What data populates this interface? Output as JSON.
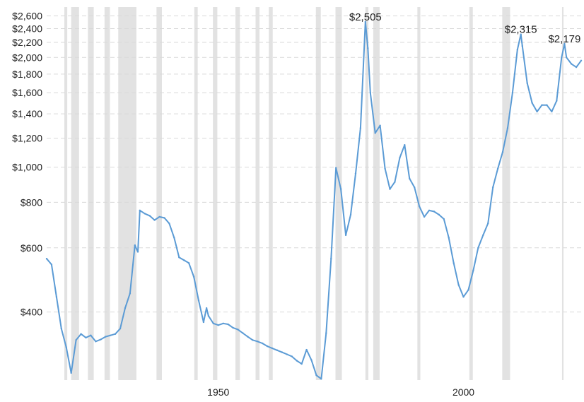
{
  "chart_data": {
    "type": "line",
    "title": "",
    "xlabel": "",
    "ylabel": "",
    "y_scale": "log",
    "ylim": [
      260,
      2750
    ],
    "xlim": [
      1915,
      2024
    ],
    "grid": true,
    "colors": {
      "line": "#5b9bd5",
      "recession": "#e2e2e2",
      "grid": "#d9d9d9"
    },
    "y_ticks": [
      {
        "value": 2600,
        "label": "$2,600"
      },
      {
        "value": 2400,
        "label": "$2,400"
      },
      {
        "value": 2200,
        "label": "$2,200"
      },
      {
        "value": 2000,
        "label": "$2,000"
      },
      {
        "value": 1800,
        "label": "$1,800"
      },
      {
        "value": 1600,
        "label": "$1,600"
      },
      {
        "value": 1400,
        "label": "$1,400"
      },
      {
        "value": 1200,
        "label": "$1,200"
      },
      {
        "value": 1000,
        "label": "$1,000"
      },
      {
        "value": 800,
        "label": "$800"
      },
      {
        "value": 600,
        "label": "$600"
      },
      {
        "value": 400,
        "label": "$400"
      }
    ],
    "x_ticks": [
      {
        "value": 1950,
        "label": "1950"
      },
      {
        "value": 2000,
        "label": "2000"
      }
    ],
    "recessions": [
      [
        1918.6,
        1919.2
      ],
      [
        1920.0,
        1921.6
      ],
      [
        1923.4,
        1924.6
      ],
      [
        1926.8,
        1927.9
      ],
      [
        1929.6,
        1933.3
      ],
      [
        1937.4,
        1938.5
      ],
      [
        1945.1,
        1945.8
      ],
      [
        1948.9,
        1949.8
      ],
      [
        1953.5,
        1954.4
      ],
      [
        1957.6,
        1958.4
      ],
      [
        1960.3,
        1961.1
      ],
      [
        1969.9,
        1970.9
      ],
      [
        1973.9,
        1975.2
      ],
      [
        1980.0,
        1980.6
      ],
      [
        1981.6,
        1982.9
      ],
      [
        1990.6,
        1991.2
      ],
      [
        2001.2,
        2001.9
      ],
      [
        2007.9,
        2009.5
      ],
      [
        2020.1,
        2020.4
      ]
    ],
    "annotations": [
      {
        "x": 1980.0,
        "y": 2505,
        "label": "$2,505"
      },
      {
        "x": 2011.7,
        "y": 2315,
        "label": "$2,315"
      },
      {
        "x": 2020.6,
        "y": 2179,
        "label": "$2,179"
      }
    ],
    "series": [
      {
        "points": [
          [
            1915,
            560
          ],
          [
            1916,
            540
          ],
          [
            1917,
            440
          ],
          [
            1918,
            360
          ],
          [
            1919,
            320
          ],
          [
            1920,
            272
          ],
          [
            1921,
            335
          ],
          [
            1922,
            348
          ],
          [
            1923,
            340
          ],
          [
            1924,
            345
          ],
          [
            1925,
            332
          ],
          [
            1926,
            336
          ],
          [
            1927,
            342
          ],
          [
            1928,
            345
          ],
          [
            1929,
            348
          ],
          [
            1930,
            360
          ],
          [
            1931,
            410
          ],
          [
            1932,
            450
          ],
          [
            1933,
            610
          ],
          [
            1933.6,
            585
          ],
          [
            1934,
            760
          ],
          [
            1935,
            745
          ],
          [
            1936,
            735
          ],
          [
            1937,
            715
          ],
          [
            1938,
            730
          ],
          [
            1939,
            725
          ],
          [
            1940,
            700
          ],
          [
            1941,
            640
          ],
          [
            1942,
            565
          ],
          [
            1943,
            555
          ],
          [
            1944,
            545
          ],
          [
            1945,
            500
          ],
          [
            1946,
            430
          ],
          [
            1947,
            375
          ],
          [
            1947.6,
            410
          ],
          [
            1948,
            390
          ],
          [
            1949,
            372
          ],
          [
            1950,
            368
          ],
          [
            1951,
            372
          ],
          [
            1952,
            370
          ],
          [
            1953,
            362
          ],
          [
            1954,
            358
          ],
          [
            1955,
            350
          ],
          [
            1956,
            342
          ],
          [
            1957,
            335
          ],
          [
            1958,
            332
          ],
          [
            1959,
            328
          ],
          [
            1960,
            322
          ],
          [
            1961,
            318
          ],
          [
            1962,
            314
          ],
          [
            1963,
            310
          ],
          [
            1964,
            306
          ],
          [
            1965,
            302
          ],
          [
            1966,
            294
          ],
          [
            1967,
            288
          ],
          [
            1968,
            315
          ],
          [
            1969,
            295
          ],
          [
            1970,
            268
          ],
          [
            1971,
            262
          ],
          [
            1972,
            350
          ],
          [
            1973,
            560
          ],
          [
            1974,
            995
          ],
          [
            1975,
            870
          ],
          [
            1976,
            650
          ],
          [
            1977,
            740
          ],
          [
            1978,
            960
          ],
          [
            1979,
            1280
          ],
          [
            1980,
            2505
          ],
          [
            1980.5,
            2120
          ],
          [
            1981,
            1600
          ],
          [
            1982,
            1240
          ],
          [
            1983,
            1300
          ],
          [
            1984,
            990
          ],
          [
            1985,
            870
          ],
          [
            1986,
            910
          ],
          [
            1987,
            1060
          ],
          [
            1988,
            1150
          ],
          [
            1989,
            930
          ],
          [
            1990,
            880
          ],
          [
            1991,
            780
          ],
          [
            1992,
            730
          ],
          [
            1993,
            760
          ],
          [
            1994,
            755
          ],
          [
            1995,
            740
          ],
          [
            1996,
            720
          ],
          [
            1997,
            640
          ],
          [
            1998,
            545
          ],
          [
            1999,
            475
          ],
          [
            2000,
            440
          ],
          [
            2001,
            460
          ],
          [
            2002,
            520
          ],
          [
            2003,
            600
          ],
          [
            2004,
            650
          ],
          [
            2005,
            700
          ],
          [
            2006,
            880
          ],
          [
            2007,
            990
          ],
          [
            2008,
            1100
          ],
          [
            2009,
            1280
          ],
          [
            2010,
            1600
          ],
          [
            2011,
            2100
          ],
          [
            2011.7,
            2315
          ],
          [
            2012,
            2150
          ],
          [
            2013,
            1700
          ],
          [
            2014,
            1500
          ],
          [
            2015,
            1420
          ],
          [
            2016,
            1480
          ],
          [
            2017,
            1480
          ],
          [
            2018,
            1420
          ],
          [
            2019,
            1520
          ],
          [
            2020,
            2000
          ],
          [
            2020.6,
            2179
          ],
          [
            2021,
            2000
          ],
          [
            2022,
            1920
          ],
          [
            2023,
            1880
          ],
          [
            2024,
            1960
          ]
        ]
      }
    ]
  }
}
